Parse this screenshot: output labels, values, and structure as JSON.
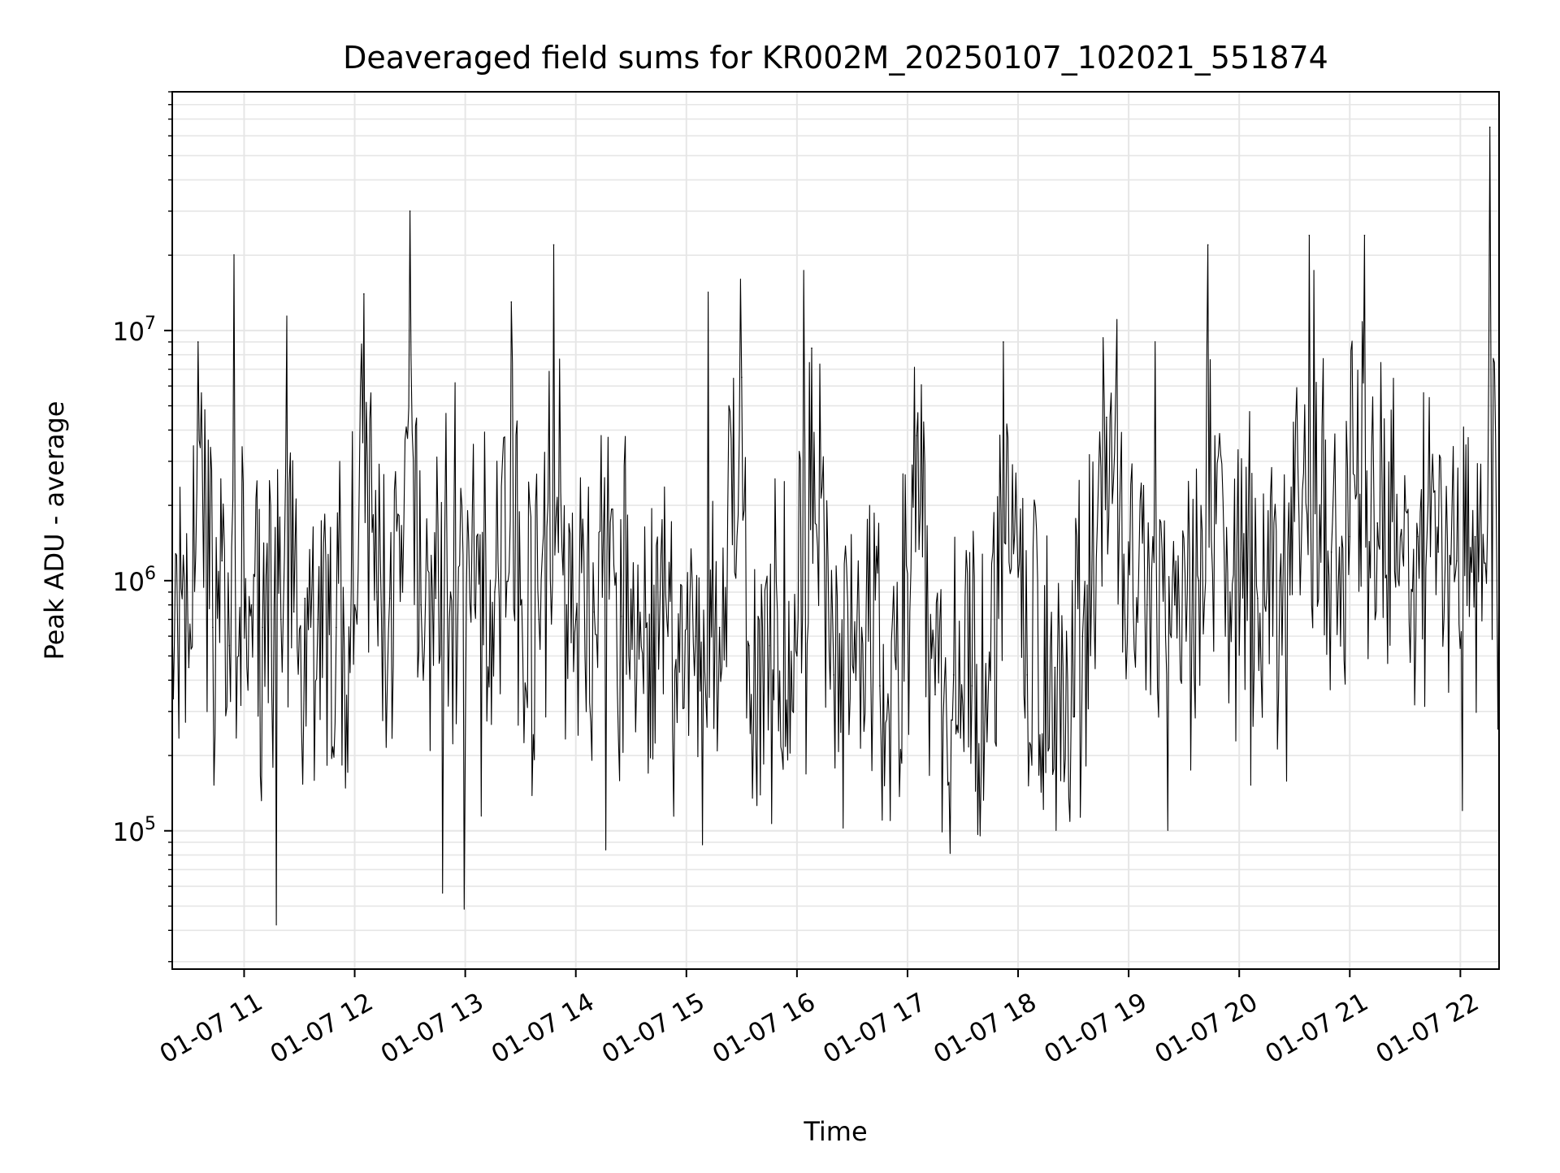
{
  "chart_data": {
    "type": "line",
    "title": "Deaveraged field sums for KR002M_20250107_102021_551874",
    "xlabel": "Time",
    "ylabel": "Peak ADU - average",
    "y_scale": "log",
    "ylim": [
      28000,
      90000000
    ],
    "xlim": [
      "2025-01-07 10:21",
      "2025-01-07 22:21"
    ],
    "grid": true,
    "line_color": "#000000",
    "grid_color": "#e6e6e6",
    "x_ticks": [
      {
        "value": "2025-01-07 11:00",
        "label": "01-07 11"
      },
      {
        "value": "2025-01-07 12:00",
        "label": "01-07 12"
      },
      {
        "value": "2025-01-07 13:00",
        "label": "01-07 13"
      },
      {
        "value": "2025-01-07 14:00",
        "label": "01-07 14"
      },
      {
        "value": "2025-01-07 15:00",
        "label": "01-07 15"
      },
      {
        "value": "2025-01-07 16:00",
        "label": "01-07 16"
      },
      {
        "value": "2025-01-07 17:00",
        "label": "01-07 17"
      },
      {
        "value": "2025-01-07 18:00",
        "label": "01-07 18"
      },
      {
        "value": "2025-01-07 19:00",
        "label": "01-07 19"
      },
      {
        "value": "2025-01-07 20:00",
        "label": "01-07 20"
      },
      {
        "value": "2025-01-07 21:00",
        "label": "01-07 21"
      },
      {
        "value": "2025-01-07 22:00",
        "label": "01-07 22"
      }
    ],
    "y_ticks": [
      {
        "value": 100000,
        "mantissa": "10",
        "exp": "5"
      },
      {
        "value": 1000000,
        "mantissa": "10",
        "exp": "6"
      },
      {
        "value": 10000000,
        "mantissa": "10",
        "exp": "7"
      }
    ],
    "series": [
      {
        "x": [
          "2025-01-07 10:21",
          "2025-01-07 10:30",
          "2025-01-07 10:35",
          "2025-01-07 10:43",
          "2025-01-07 10:48",
          "2025-01-07 10:52",
          "2025-01-07 10:57",
          "2025-01-07 11:04",
          "2025-01-07 11:10",
          "2025-01-07 11:20",
          "2025-01-07 11:27",
          "2025-01-07 11:33",
          "2025-01-07 11:40",
          "2025-01-07 11:50",
          "2025-01-07 12:00",
          "2025-01-07 12:05",
          "2025-01-07 12:12",
          "2025-01-07 12:19",
          "2025-01-07 12:26",
          "2025-01-07 12:30",
          "2025-01-07 12:36",
          "2025-01-07 12:44",
          "2025-01-07 12:52",
          "2025-01-07 13:05",
          "2025-01-07 13:16",
          "2025-01-07 13:25",
          "2025-01-07 13:30",
          "2025-01-07 13:40",
          "2025-01-07 13:48",
          "2025-01-07 13:55",
          "2025-01-07 14:00",
          "2025-01-07 14:10",
          "2025-01-07 14:25",
          "2025-01-07 14:38",
          "2025-01-07 14:50",
          "2025-01-07 15:05",
          "2025-01-07 15:18",
          "2025-01-07 15:30",
          "2025-01-07 15:34",
          "2025-01-07 15:45",
          "2025-01-07 16:00",
          "2025-01-07 16:08",
          "2025-01-07 16:20",
          "2025-01-07 16:32",
          "2025-01-07 16:45",
          "2025-01-07 16:55",
          "2025-01-07 17:05",
          "2025-01-07 17:15",
          "2025-01-07 17:25",
          "2025-01-07 17:35",
          "2025-01-07 17:45",
          "2025-01-07 17:52",
          "2025-01-07 18:05",
          "2025-01-07 18:20",
          "2025-01-07 18:35",
          "2025-01-07 18:48",
          "2025-01-07 18:58",
          "2025-01-07 19:10",
          "2025-01-07 19:25",
          "2025-01-07 19:38",
          "2025-01-07 19:43",
          "2025-01-07 19:55",
          "2025-01-07 20:10",
          "2025-01-07 20:22",
          "2025-01-07 20:38",
          "2025-01-07 20:50",
          "2025-01-07 21:00",
          "2025-01-07 21:08",
          "2025-01-07 21:15",
          "2025-01-07 21:28",
          "2025-01-07 21:37",
          "2025-01-07 21:48",
          "2025-01-07 21:58",
          "2025-01-07 22:08",
          "2025-01-07 22:16",
          "2025-01-07 22:21"
        ],
        "values": [
          700000,
          450000,
          9000000,
          650000,
          1200000,
          550000,
          500000,
          800000,
          650000,
          700000,
          750000,
          850000,
          700000,
          650000,
          800000,
          14000000,
          900000,
          850000,
          900000,
          30000000,
          800000,
          850000,
          900000,
          800000,
          900000,
          13000000,
          800000,
          700000,
          22000000,
          800000,
          700000,
          750000,
          720000,
          650000,
          600000,
          600000,
          650000,
          6500000,
          550000,
          550000,
          500000,
          8500000,
          420000,
          400000,
          380000,
          400000,
          3800000,
          350000,
          420000,
          380000,
          400000,
          9000000,
          420000,
          450000,
          600000,
          4500000,
          700000,
          800000,
          800000,
          1000000,
          22000000,
          900000,
          850000,
          1000000,
          24000000,
          1300000,
          1500000,
          24000000,
          1700000,
          1600000,
          1500000,
          1300000,
          1200000,
          1500000,
          65000000,
          1300000
        ]
      }
    ]
  }
}
